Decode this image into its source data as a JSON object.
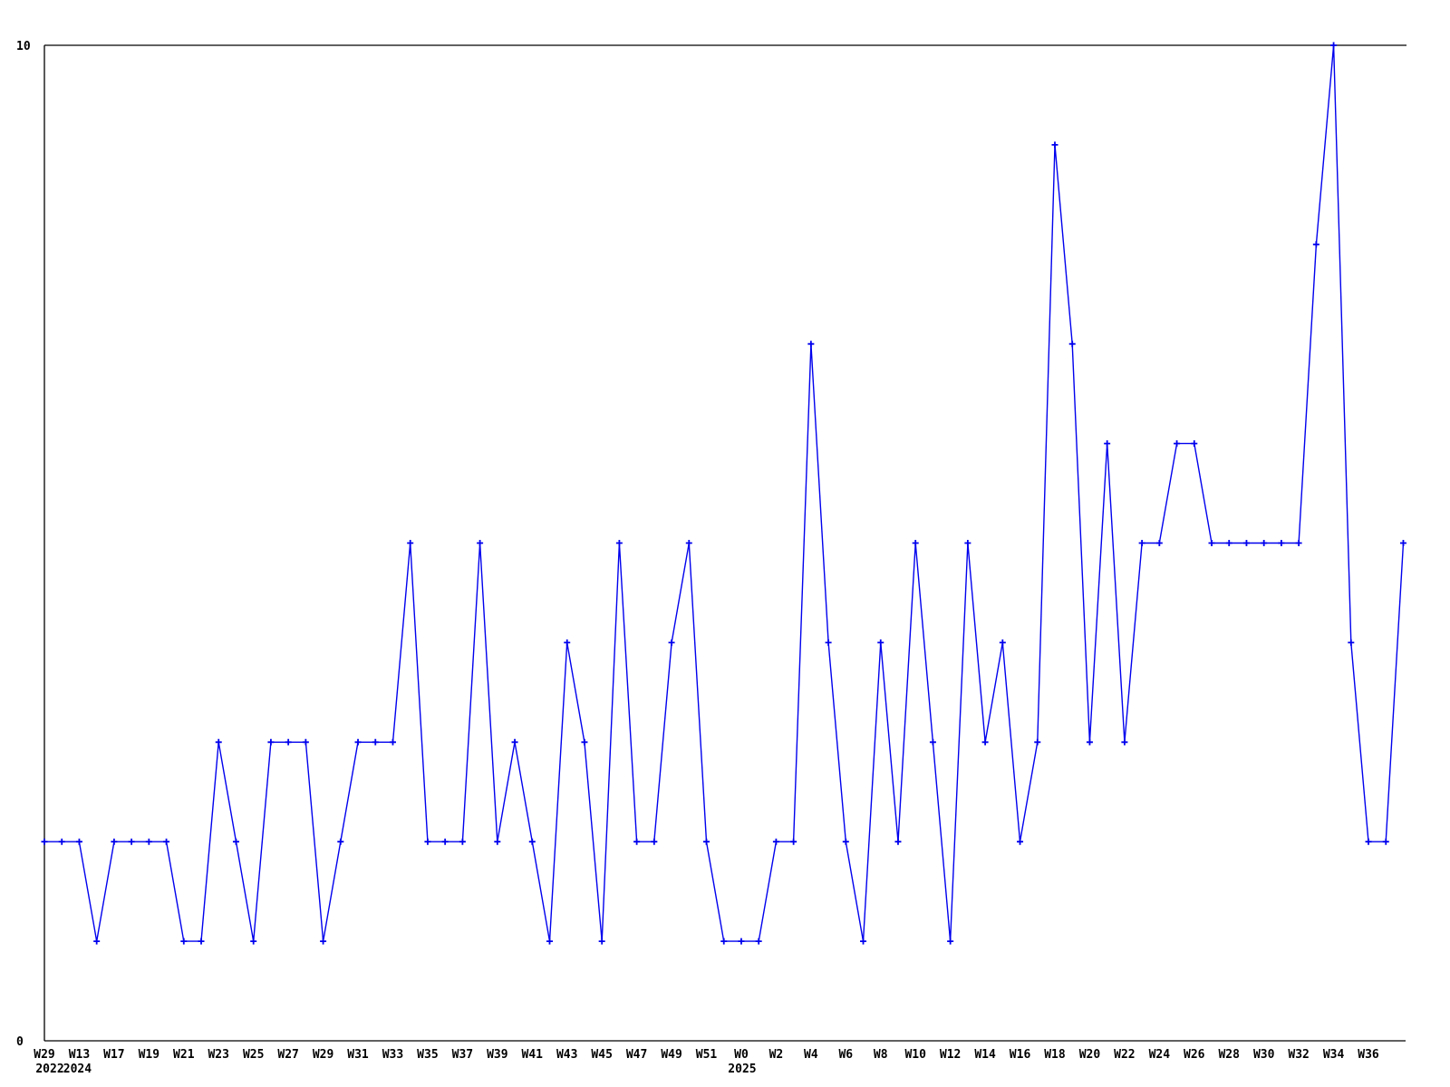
{
  "chart_data": {
    "type": "line",
    "title": "",
    "xlabel": "",
    "ylabel": "",
    "x_axis": {
      "tick_labels": [
        "W29",
        "W13",
        "W17",
        "W19",
        "W21",
        "W23",
        "W25",
        "W27",
        "W29",
        "W31",
        "W33",
        "W35",
        "W37",
        "W39",
        "W41",
        "W43",
        "W45",
        "W47",
        "W49",
        "W51",
        "W0",
        "W2",
        "W4",
        "W6",
        "W8",
        "W10",
        "W12",
        "W14",
        "W16",
        "W18",
        "W20",
        "W22",
        "W24",
        "W26",
        "W28",
        "W30",
        "W32",
        "W34",
        "W36"
      ],
      "ticks_every_n_points": 2,
      "year_annotations": [
        {
          "point_index": 0,
          "label": "2022"
        },
        {
          "point_index": 2,
          "label": "2024"
        },
        {
          "point_index": 40,
          "label": "2025"
        }
      ]
    },
    "y_axis": {
      "min": 0,
      "max": 10,
      "tick_labels": [
        {
          "value": 10,
          "label": "10"
        },
        {
          "value": 0,
          "label": "0"
        }
      ]
    },
    "values": [
      2,
      2,
      2,
      1,
      2,
      2,
      2,
      2,
      1,
      1,
      3,
      2,
      1,
      3,
      3,
      3,
      1,
      2,
      3,
      3,
      3,
      5,
      2,
      2,
      2,
      5,
      2,
      3,
      2,
      1,
      4,
      3,
      1,
      5,
      2,
      2,
      4,
      5,
      2,
      1,
      1,
      1,
      2,
      2,
      7,
      4,
      2,
      1,
      4,
      2,
      5,
      3,
      1,
      5,
      3,
      4,
      2,
      3,
      9,
      7,
      3,
      6,
      3,
      5,
      5,
      6,
      6,
      5,
      5,
      5,
      5,
      5,
      5,
      8,
      10,
      4,
      2,
      2,
      5
    ],
    "series_color": "#0000ee",
    "axis_color": "#000000",
    "background_color": "#ffffff",
    "marker": "plus",
    "grid": false,
    "legend": false
  }
}
